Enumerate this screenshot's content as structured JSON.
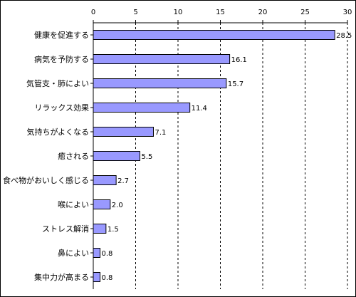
{
  "chart_data": {
    "type": "bar",
    "orientation": "horizontal",
    "categories": [
      "健康を促進する",
      "病気を予防する",
      "気管支・肺によい",
      "リラックス効果",
      "気持ちがよくなる",
      "癒される",
      "食べ物がおいしく感じる",
      "喉によい",
      "ストレス解消",
      "鼻によい",
      "集中力が高まる"
    ],
    "values": [
      28.5,
      16.1,
      15.7,
      11.4,
      7.1,
      5.5,
      2.7,
      2.0,
      1.5,
      0.8,
      0.8
    ],
    "data_labels": [
      "28.5",
      "16.1",
      "15.7",
      "11.4",
      "7.1",
      "5.5",
      "2.7",
      "2.0",
      "1.5",
      "0.8",
      "0.8"
    ],
    "x_ticks": [
      "0",
      "5",
      "10",
      "15",
      "20",
      "25",
      "30"
    ],
    "xlim": [
      0,
      30
    ],
    "x_axis_position": "top",
    "grid": "vertical dashed",
    "bar_color": "#9999ff",
    "bar_edge_color": "#000000",
    "title": "",
    "xlabel": "",
    "ylabel": ""
  }
}
